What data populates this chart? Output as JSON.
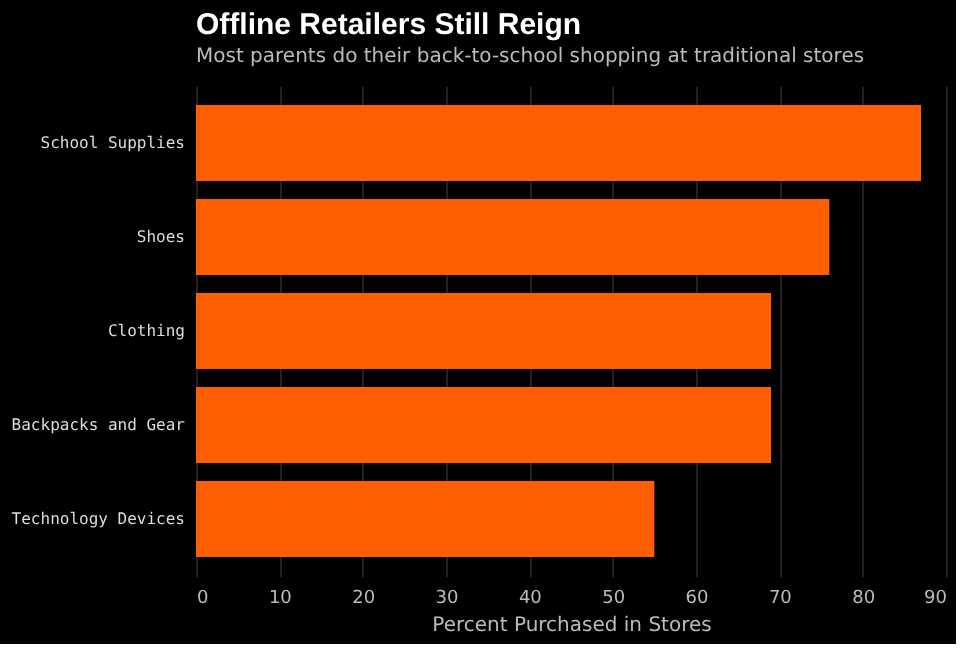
{
  "chart_data": {
    "type": "bar",
    "orientation": "horizontal",
    "title": "Offline Retailers Still Reign",
    "subtitle": "Most parents do their back-to-school shopping at traditional stores",
    "xlabel": "Percent Purchased in Stores",
    "categories": [
      "School Supplies",
      "Shoes",
      "Clothing",
      "Backpacks and Gear",
      "Technology Devices"
    ],
    "values": [
      87,
      76,
      69,
      69,
      55
    ],
    "color": "#ff5f00",
    "xlim": [
      0,
      90
    ],
    "xticks": [
      0,
      10,
      20,
      30,
      40,
      50,
      60,
      70,
      80,
      90
    ],
    "grid": "x"
  }
}
